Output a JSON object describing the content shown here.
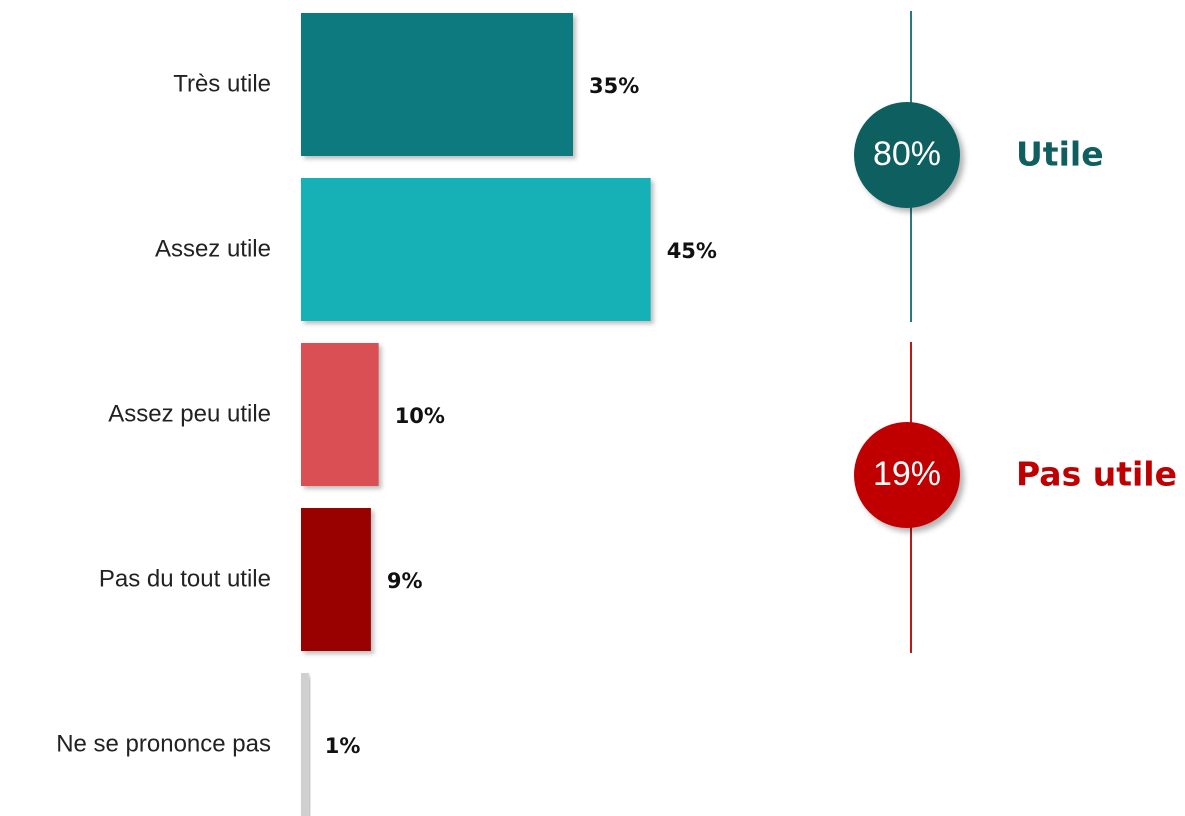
{
  "chart_data": {
    "type": "bar",
    "orientation": "horizontal",
    "categories": [
      "Très utile",
      "Assez utile",
      "Assez peu utile",
      "Pas du tout utile",
      "Ne se prononce pas"
    ],
    "values": [
      35,
      45,
      10,
      9,
      1
    ],
    "value_labels": [
      "35%",
      "45%",
      "10%",
      "9%",
      "1%"
    ],
    "colors": [
      "#117a80",
      "#14b0b7",
      "#d94f53",
      "#990000",
      "#d0d0d0"
    ],
    "unit": "%",
    "title": "",
    "xlabel": "",
    "ylabel": "",
    "grid": false,
    "legend": "none",
    "summaries": [
      {
        "value": "80%",
        "label": "Utile",
        "color": "#0f5e60",
        "line_color": "#2a7a7c"
      },
      {
        "value": "19%",
        "label": "Pas utile",
        "color": "#c00000",
        "line_color": "#c01818"
      }
    ]
  }
}
